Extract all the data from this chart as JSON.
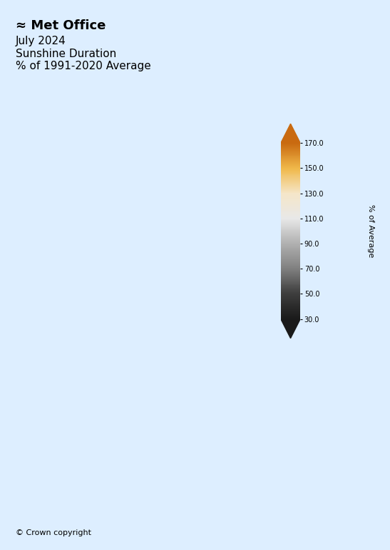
{
  "title_line1": "July 2024",
  "title_line2": "Sunshine Duration",
  "title_line3": "% of 1991-2020 Average",
  "logo_text": "≈ Met Office",
  "copyright_text": "© Crown copyright",
  "colorbar_label": "% of Average",
  "colorbar_ticks": [
    30.0,
    50.0,
    70.0,
    90.0,
    110.0,
    130.0,
    150.0,
    170.0
  ],
  "colorbar_colors": [
    "#1a1a1a",
    "#3d3d3d",
    "#808080",
    "#b0b0b0",
    "#e8e8e8",
    "#f5e6c8",
    "#f0b84a",
    "#c96a10"
  ],
  "background_color": "#ddeeff",
  "map_background": "#ddeeff",
  "figure_background": "#ddeeff",
  "vmin": 30.0,
  "vmax": 170.0
}
